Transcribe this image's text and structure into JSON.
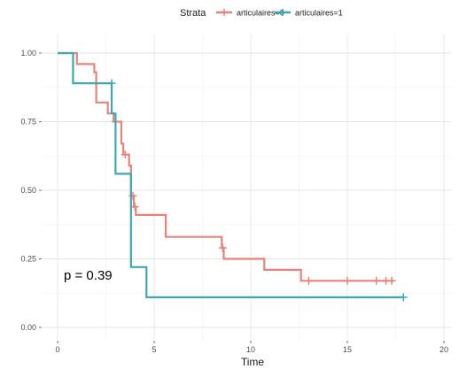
{
  "chart_data": {
    "type": "line",
    "subtype": "kaplan-meier-step",
    "title": "",
    "xlabel": "Time",
    "ylabel": "",
    "xlim": [
      0,
      20
    ],
    "ylim": [
      0,
      1
    ],
    "x_ticks": [
      0,
      5,
      10,
      15,
      20
    ],
    "x_tick_labels": [
      "0",
      "5",
      "10",
      "15",
      "20"
    ],
    "y_ticks": [
      0,
      0.25,
      0.5,
      0.75,
      1
    ],
    "y_tick_labels": [
      "0.00",
      "0.25",
      "0.50",
      "0.75",
      "1.00"
    ],
    "grid": true,
    "legend": {
      "title": "Strata",
      "position": "top"
    },
    "annotation": "p = 0.39",
    "series": [
      {
        "name": "articulaires=0",
        "color": "#e8837a",
        "steps": [
          [
            0,
            1.0
          ],
          [
            1.0,
            0.96
          ],
          [
            1.9,
            0.93
          ],
          [
            2.0,
            0.82
          ],
          [
            2.6,
            0.78
          ],
          [
            2.9,
            0.75
          ],
          [
            3.3,
            0.67
          ],
          [
            3.4,
            0.63
          ],
          [
            3.7,
            0.59
          ],
          [
            3.8,
            0.48
          ],
          [
            3.95,
            0.44
          ],
          [
            4.05,
            0.41
          ],
          [
            5.6,
            0.33
          ],
          [
            8.5,
            0.29
          ],
          [
            8.6,
            0.25
          ],
          [
            10.7,
            0.21
          ],
          [
            12.6,
            0.17
          ],
          [
            17.4,
            0.17
          ]
        ],
        "censored": [
          [
            3.0,
            0.75
          ],
          [
            3.5,
            0.63
          ],
          [
            3.9,
            0.48
          ],
          [
            4.0,
            0.44
          ],
          [
            8.55,
            0.29
          ],
          [
            13.0,
            0.17
          ],
          [
            15.0,
            0.17
          ],
          [
            16.5,
            0.17
          ],
          [
            17.0,
            0.17
          ],
          [
            17.3,
            0.17
          ]
        ]
      },
      {
        "name": "articulaires=1",
        "color": "#39aab5",
        "steps": [
          [
            0,
            1.0
          ],
          [
            0.8,
            0.89
          ],
          [
            2.8,
            0.78
          ],
          [
            3.0,
            0.56
          ],
          [
            3.8,
            0.22
          ],
          [
            4.6,
            0.11
          ],
          [
            17.9,
            0.11
          ]
        ],
        "censored": [
          [
            2.8,
            0.89
          ],
          [
            17.9,
            0.11
          ]
        ]
      }
    ]
  }
}
